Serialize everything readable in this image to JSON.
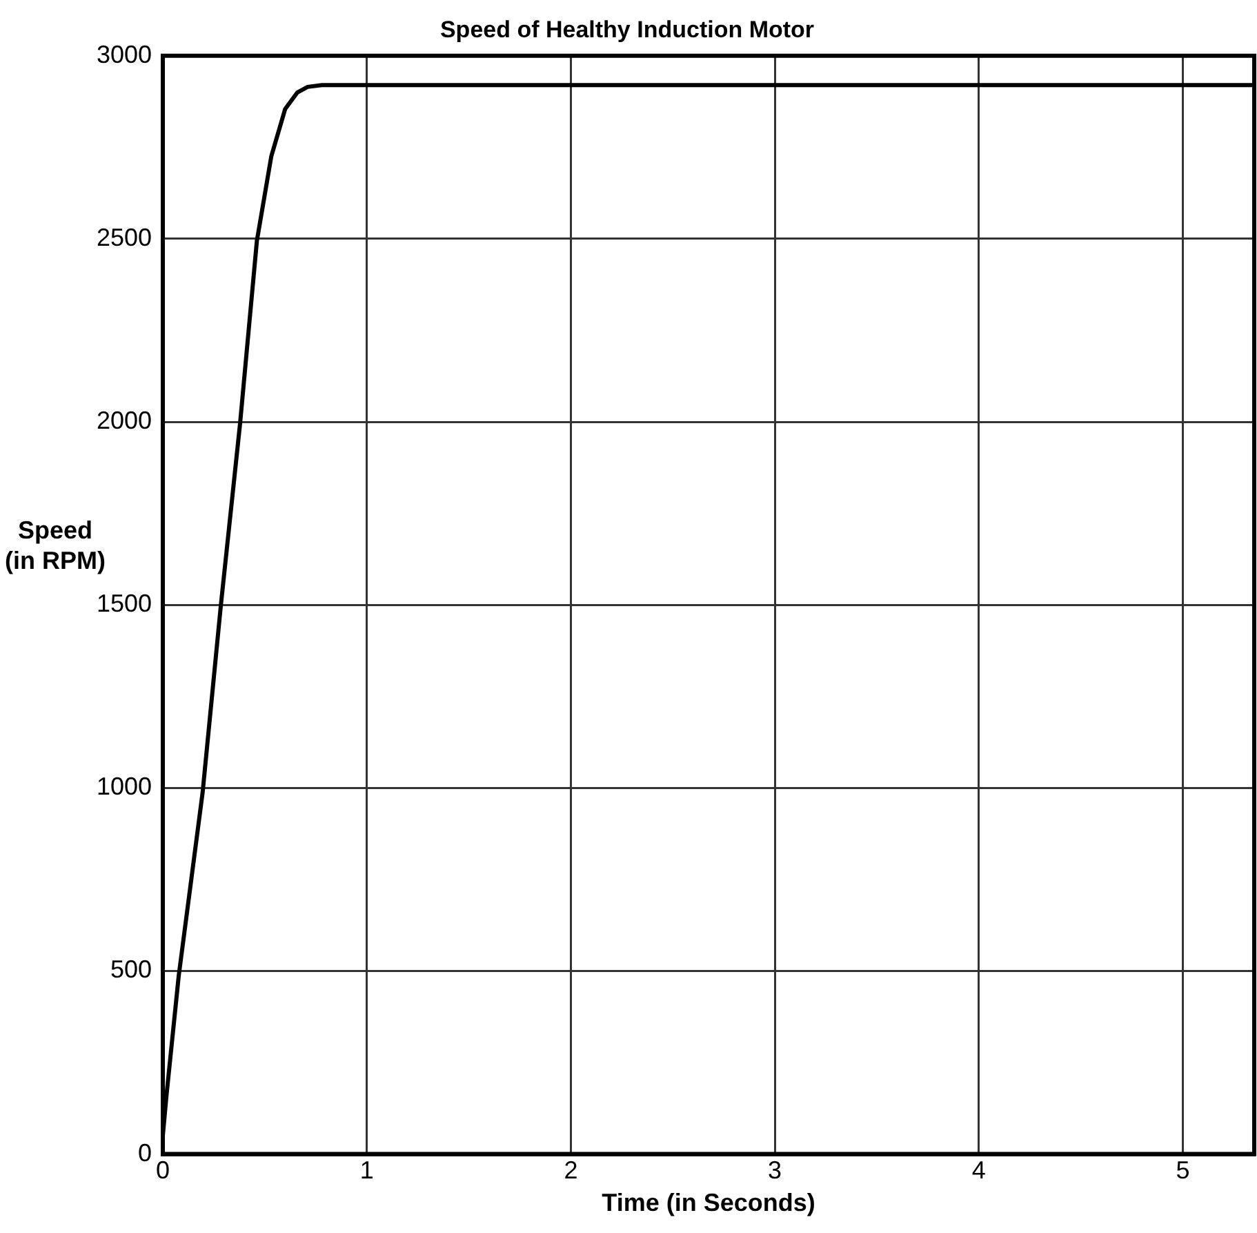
{
  "chart_data": {
    "type": "line",
    "title": "Speed of Healthy Induction Motor",
    "xlabel": "Time (in Seconds)",
    "ylabel": "Speed\n(in RPM)",
    "series": [
      {
        "color": "#000000",
        "x": [
          0,
          0.018,
          0.078,
          0.195,
          0.284,
          0.379,
          0.461,
          0.532,
          0.6,
          0.66,
          0.71,
          0.78,
          5.35
        ],
        "values": [
          50,
          160,
          487,
          987,
          1496,
          1997,
          2494,
          2726,
          2855,
          2900,
          2915,
          2920,
          2920
        ]
      }
    ],
    "xlim": [
      0,
      5.35
    ],
    "xticks": [
      0,
      1,
      2,
      3,
      4,
      5
    ],
    "ylim": [
      0,
      3000
    ],
    "yticks": [
      0,
      500,
      1000,
      1500,
      2000,
      2500,
      3000
    ],
    "grid": true,
    "legend": false,
    "marker": "none",
    "line_style": "solid"
  }
}
